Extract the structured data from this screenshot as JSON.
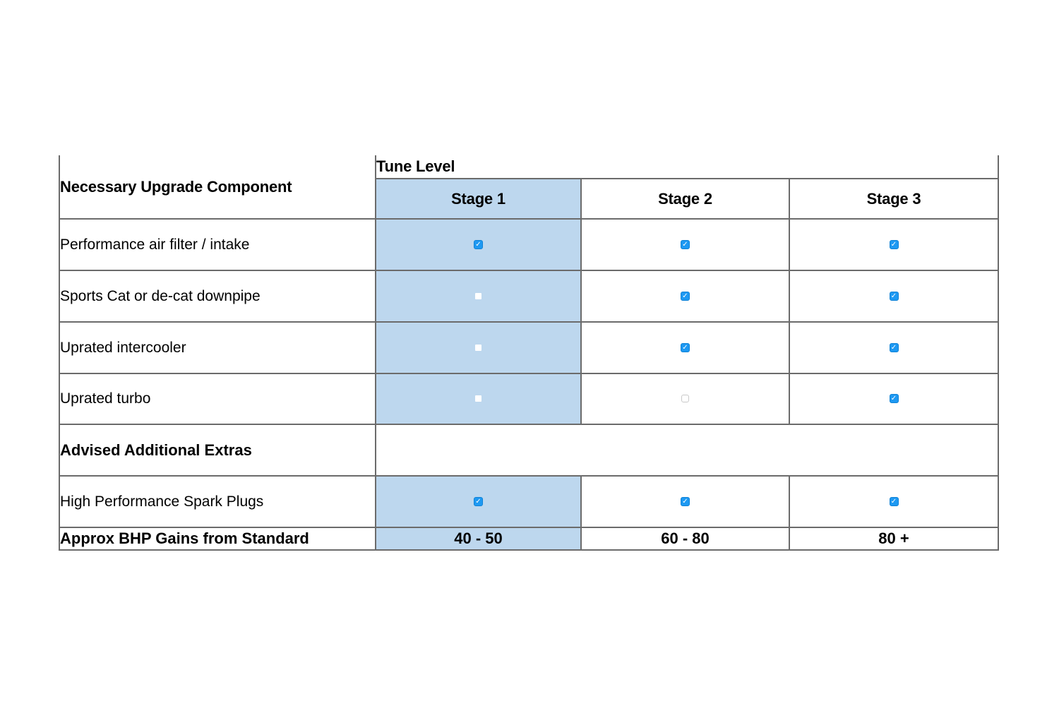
{
  "table": {
    "corner_header": "Necessary Upgrade Component",
    "group_header": "Tune Level",
    "columns": [
      {
        "label": "Stage 1",
        "highlighted": true
      },
      {
        "label": "Stage 2",
        "highlighted": false
      },
      {
        "label": "Stage 3",
        "highlighted": false
      }
    ],
    "component_rows": [
      {
        "label": "Performance air filter / intake",
        "cells": [
          "checked",
          "checked",
          "checked"
        ]
      },
      {
        "label": "Sports Cat or de-cat downpipe",
        "cells": [
          "unchecked",
          "checked",
          "checked"
        ]
      },
      {
        "label": "Uprated intercooler",
        "cells": [
          "unchecked",
          "checked",
          "checked"
        ]
      },
      {
        "label": "Uprated turbo",
        "cells": [
          "unchecked",
          "unchecked",
          "checked"
        ]
      }
    ],
    "section_row": {
      "label": "Advised Additional Extras"
    },
    "extras_rows": [
      {
        "label": "High Performance Spark Plugs",
        "cells": [
          "checked",
          "checked",
          "checked"
        ]
      }
    ],
    "footer_row": {
      "label": "Approx BHP Gains from Standard",
      "values": [
        "40 - 50",
        "60 - 80",
        "80 +"
      ]
    }
  },
  "checkbox_glyph": "✓",
  "colors": {
    "page_bg": "#FFFFFF",
    "text": "#000000",
    "border": "#6B6B6B",
    "highlight_column": "#BDD7EE",
    "checkbox_checked": "#1E99F2",
    "checkbox_checked_border": "#0F82D6",
    "checkbox_unchecked_border": "#C9C9C9"
  }
}
